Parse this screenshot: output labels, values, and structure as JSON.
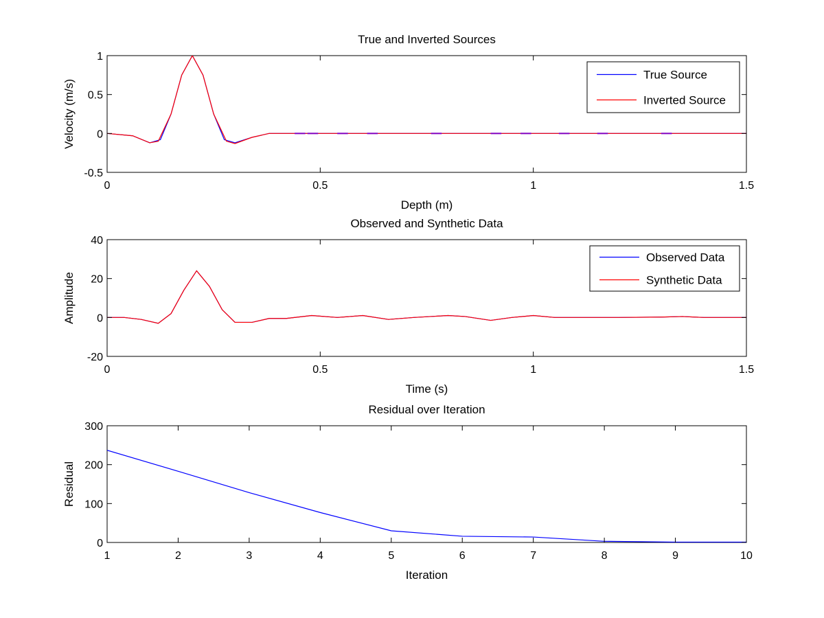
{
  "chart_data": [
    {
      "type": "line",
      "title": "True and Inverted Sources",
      "xlabel": "Depth (m)",
      "ylabel": "Velocity (m/s)",
      "xlim": [
        0,
        1.5
      ],
      "ylim": [
        -0.5,
        1
      ],
      "xticks": [
        0,
        0.5,
        1,
        1.5
      ],
      "yticks": [
        -0.5,
        0,
        0.5,
        1
      ],
      "xtick_labels": [
        "0",
        "0.5",
        "1",
        "1.5"
      ],
      "ytick_labels": [
        "-0.5",
        "0",
        "0.5",
        "1"
      ],
      "grid": false,
      "legend_position": "top-right",
      "series": [
        {
          "name": "True Source",
          "color": "#0000ff",
          "x": [
            0,
            0.06,
            0.1,
            0.125,
            0.15,
            0.175,
            0.2,
            0.225,
            0.25,
            0.275,
            0.3,
            0.34,
            0.38,
            0.4,
            1.5
          ],
          "y": [
            0,
            -0.03,
            -0.12,
            -0.08,
            0.25,
            0.75,
            1.0,
            0.75,
            0.25,
            -0.08,
            -0.12,
            -0.05,
            0,
            0,
            0
          ]
        },
        {
          "name": "Inverted Source",
          "color": "#ff0000",
          "x": [
            0,
            0.06,
            0.1,
            0.12,
            0.15,
            0.175,
            0.2,
            0.225,
            0.25,
            0.28,
            0.3,
            0.34,
            0.38,
            0.4,
            1.5
          ],
          "y": [
            0,
            -0.03,
            -0.12,
            -0.1,
            0.25,
            0.75,
            1.0,
            0.75,
            0.25,
            -0.1,
            -0.13,
            -0.05,
            0,
            0,
            0
          ]
        }
      ]
    },
    {
      "type": "line",
      "title": "Observed and Synthetic Data",
      "xlabel": "Time (s)",
      "ylabel": "Amplitude",
      "xlim": [
        0,
        1.5
      ],
      "ylim": [
        -20,
        40
      ],
      "xticks": [
        0,
        0.5,
        1,
        1.5
      ],
      "yticks": [
        -20,
        0,
        20,
        40
      ],
      "xtick_labels": [
        "0",
        "0.5",
        "1",
        "1.5"
      ],
      "ytick_labels": [
        "-20",
        "0",
        "20",
        "40"
      ],
      "grid": false,
      "legend_position": "top-right",
      "series": [
        {
          "name": "Observed Data",
          "color": "#0000ff",
          "x": [
            0,
            0.04,
            0.08,
            0.12,
            0.15,
            0.18,
            0.21,
            0.24,
            0.27,
            0.3,
            0.34,
            0.38,
            0.42,
            0.48,
            0.54,
            0.6,
            0.66,
            0.72,
            0.8,
            0.84,
            0.9,
            0.95,
            1.0,
            1.05,
            1.2,
            1.3,
            1.35,
            1.4,
            1.5
          ],
          "y": [
            0,
            0,
            -1,
            -3,
            2,
            14,
            24,
            16,
            4,
            -2.5,
            -2.5,
            -0.5,
            -0.5,
            1,
            0,
            1,
            -1,
            0,
            1,
            0.5,
            -1.5,
            0,
            1,
            0,
            0,
            0.2,
            0.5,
            0,
            0
          ]
        },
        {
          "name": "Synthetic Data",
          "color": "#ff0000",
          "x": [
            0,
            0.04,
            0.08,
            0.12,
            0.15,
            0.18,
            0.21,
            0.24,
            0.27,
            0.3,
            0.34,
            0.38,
            0.42,
            0.48,
            0.54,
            0.6,
            0.66,
            0.72,
            0.8,
            0.84,
            0.9,
            0.95,
            1.0,
            1.05,
            1.2,
            1.3,
            1.35,
            1.4,
            1.5
          ],
          "y": [
            0,
            0,
            -1,
            -3,
            2,
            14,
            24,
            16,
            4,
            -2.5,
            -2.5,
            -0.5,
            -0.5,
            1,
            0,
            1,
            -1,
            0,
            1,
            0.5,
            -1.5,
            0,
            1,
            0,
            0,
            0.2,
            0.5,
            0,
            0
          ]
        }
      ]
    },
    {
      "type": "line",
      "title": "Residual over Iteration",
      "xlabel": "Iteration",
      "ylabel": "Residual",
      "xlim": [
        1,
        10
      ],
      "ylim": [
        0,
        300
      ],
      "xticks": [
        1,
        2,
        3,
        4,
        5,
        6,
        7,
        8,
        9,
        10
      ],
      "yticks": [
        0,
        100,
        200,
        300
      ],
      "xtick_labels": [
        "1",
        "2",
        "3",
        "4",
        "5",
        "6",
        "7",
        "8",
        "9",
        "10"
      ],
      "ytick_labels": [
        "0",
        "100",
        "200",
        "300"
      ],
      "grid": false,
      "legend_position": "none",
      "series": [
        {
          "name": "Residual",
          "color": "#0000ff",
          "x": [
            1,
            2,
            3,
            4,
            5,
            6,
            7,
            8,
            9,
            10
          ],
          "y": [
            237,
            183,
            128,
            77,
            30,
            16,
            14,
            3,
            1,
            1
          ]
        }
      ]
    }
  ]
}
